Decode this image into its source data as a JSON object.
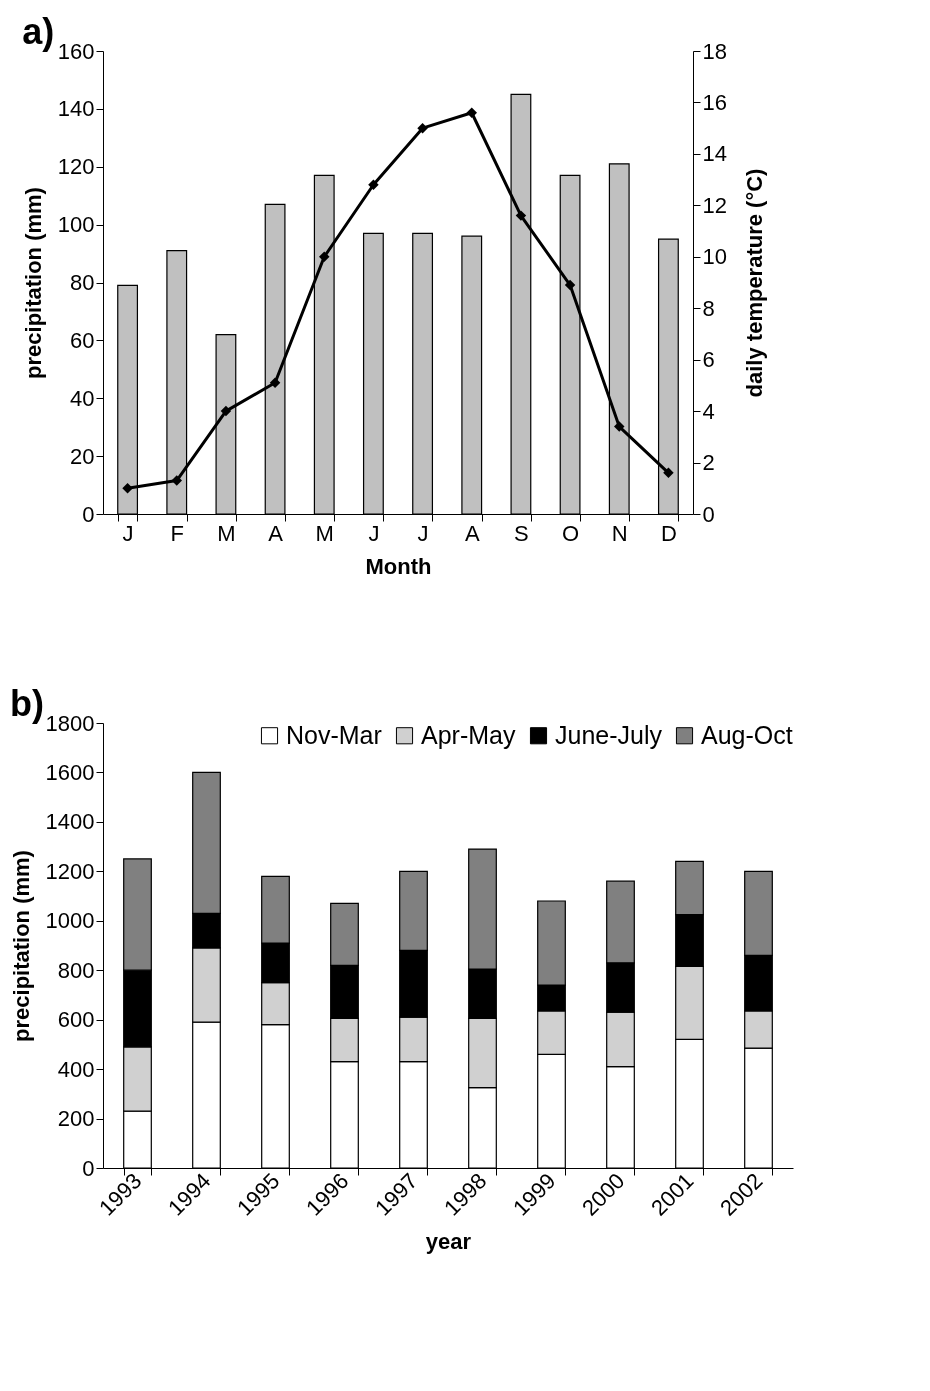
{
  "chart_data": [
    {
      "type": "bar",
      "title": "a)",
      "xlabel": "Month",
      "ylabel": "precipitation (mm)",
      "y2label": "daily temperature (°C)",
      "categories": [
        "J",
        "F",
        "M",
        "A",
        "M",
        "J",
        "J",
        "A",
        "S",
        "O",
        "N",
        "D"
      ],
      "series": [
        {
          "type": "bar",
          "color": "#c0c0c0",
          "values": [
            79,
            91,
            62,
            107,
            117,
            97,
            97,
            96,
            145,
            117,
            121,
            95
          ]
        },
        {
          "type": "line",
          "axis": "y2",
          "color": "#000000",
          "marker": "diamond",
          "values": [
            1.0,
            1.3,
            4.0,
            5.1,
            10.0,
            12.8,
            15.0,
            15.6,
            11.6,
            8.9,
            3.4,
            1.6
          ]
        }
      ],
      "ylim": [
        0,
        160
      ],
      "yticks": [
        0,
        20,
        40,
        60,
        80,
        100,
        120,
        140,
        160
      ],
      "y2lim": [
        0,
        18
      ],
      "y2ticks": [
        0,
        2,
        4,
        6,
        8,
        10,
        12,
        14,
        16,
        18
      ],
      "grid": false
    },
    {
      "type": "bar",
      "title": "b)",
      "xlabel": "year",
      "ylabel": "precipitation (mm)",
      "stacked": true,
      "categories": [
        "1993",
        "1994",
        "1995",
        "1996",
        "1997",
        "1998",
        "1999",
        "2000",
        "2001",
        "2002"
      ],
      "series": [
        {
          "name": "Nov-Mar",
          "color": "#ffffff",
          "values": [
            230,
            590,
            580,
            430,
            430,
            325,
            460,
            410,
            520,
            485
          ]
        },
        {
          "name": "Apr-May",
          "color": "#d0d0d0",
          "values": [
            260,
            300,
            170,
            175,
            180,
            280,
            175,
            220,
            295,
            150
          ]
        },
        {
          "name": "June-July",
          "color": "#000000",
          "values": [
            310,
            140,
            160,
            215,
            270,
            200,
            105,
            200,
            210,
            225
          ]
        },
        {
          "name": "Aug-Oct",
          "color": "#808080",
          "values": [
            450,
            570,
            270,
            250,
            320,
            485,
            340,
            330,
            215,
            340
          ]
        }
      ],
      "ylim": [
        0,
        1800
      ],
      "yticks": [
        0,
        200,
        400,
        600,
        800,
        1000,
        1200,
        1400,
        1600,
        1800
      ],
      "grid": false,
      "legend": "top right"
    }
  ]
}
